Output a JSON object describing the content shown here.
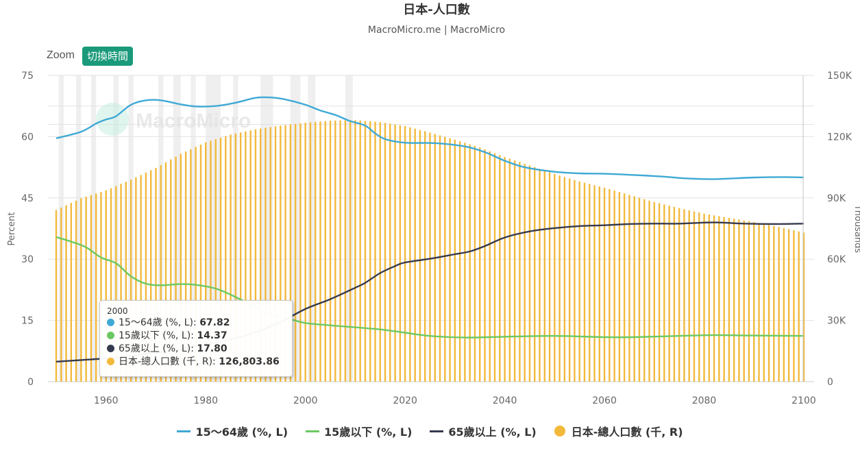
{
  "title": "日本-人口數",
  "subtitle": "MacroMicro.me | MacroMicro",
  "watermark": "MacroMicro",
  "zoom": {
    "label": "Zoom",
    "button": "切換時間"
  },
  "axes": {
    "left_title": "Percent",
    "right_title": "Thousands",
    "left_ticks": [
      "0",
      "15",
      "30",
      "45",
      "60",
      "75"
    ],
    "right_ticks": [
      "0",
      "30K",
      "60K",
      "90K",
      "120K",
      "150K"
    ],
    "x_ticks": [
      "1960",
      "1980",
      "2000",
      "2020",
      "2040",
      "2060",
      "2080",
      "2100"
    ]
  },
  "tooltip": {
    "header": "2000",
    "rows": [
      {
        "label": "15～64歲 (%, L):",
        "value": "67.82",
        "color": "#3ea9d5"
      },
      {
        "label": "15歲以下 (%, L):",
        "value": "14.37",
        "color": "#6cc861"
      },
      {
        "label": "65歲以上 (%, L):",
        "value": "17.80",
        "color": "#353a4e"
      },
      {
        "label": "日本-總人口數 (千, R):",
        "value": "126,803.86",
        "color": "#f2b93b"
      }
    ]
  },
  "legend": [
    {
      "label": "15～64歲 (%, L)",
      "color": "#3ea9d5",
      "shape": "line"
    },
    {
      "label": "15歲以下 (%, L)",
      "color": "#6cc861",
      "shape": "line"
    },
    {
      "label": "65歲以上 (%, L)",
      "color": "#353a4e",
      "shape": "line"
    },
    {
      "label": "日本-總人口數 (千, R)",
      "color": "#f2b93b",
      "shape": "dot"
    }
  ],
  "chart_data": {
    "type": "line+bar",
    "x_range": [
      1950,
      2100
    ],
    "left_axis": {
      "label": "Percent",
      "range": [
        0,
        75
      ]
    },
    "right_axis": {
      "label": "Thousands",
      "range": [
        0,
        150000
      ]
    },
    "recession_bands": [
      [
        1950.5,
        1951.5
      ],
      [
        1954,
        1955
      ],
      [
        1957,
        1958
      ],
      [
        1961.5,
        1962.5
      ],
      [
        1964.5,
        1965.5
      ],
      [
        1970.5,
        1971.5
      ],
      [
        1973.5,
        1975
      ],
      [
        1977,
        1978
      ],
      [
        1980,
        1983
      ],
      [
        1985.5,
        1986.5
      ],
      [
        1991,
        1993.5
      ],
      [
        1997,
        1999
      ],
      [
        2000.5,
        2002
      ],
      [
        2008,
        2009.5
      ]
    ],
    "series": [
      {
        "name": "15～64歲 (%, L)",
        "axis": "left",
        "kind": "line",
        "color": "#3ea9d5",
        "points": [
          [
            1950,
            59.6
          ],
          [
            1955,
            61.2
          ],
          [
            1958,
            63.2
          ],
          [
            1960,
            64.2
          ],
          [
            1962,
            65.0
          ],
          [
            1965,
            67.8
          ],
          [
            1968,
            68.9
          ],
          [
            1971,
            68.9
          ],
          [
            1975,
            67.9
          ],
          [
            1978,
            67.4
          ],
          [
            1982,
            67.5
          ],
          [
            1986,
            68.3
          ],
          [
            1990,
            69.5
          ],
          [
            1993,
            69.6
          ],
          [
            1996,
            69.1
          ],
          [
            2000,
            67.8
          ],
          [
            2003,
            66.4
          ],
          [
            2006,
            65.3
          ],
          [
            2009,
            63.8
          ],
          [
            2012,
            62.7
          ],
          [
            2014,
            60.8
          ],
          [
            2016,
            59.4
          ],
          [
            2020,
            58.5
          ],
          [
            2026,
            58.4
          ],
          [
            2032,
            57.6
          ],
          [
            2036,
            56.2
          ],
          [
            2040,
            54.1
          ],
          [
            2044,
            52.5
          ],
          [
            2050,
            51.4
          ],
          [
            2055,
            51.0
          ],
          [
            2060,
            50.9
          ],
          [
            2066,
            50.6
          ],
          [
            2072,
            50.2
          ],
          [
            2076,
            49.8
          ],
          [
            2082,
            49.6
          ],
          [
            2090,
            50.0
          ],
          [
            2096,
            50.1
          ],
          [
            2100,
            50.0
          ]
        ]
      },
      {
        "name": "15歲以下 (%, L)",
        "axis": "left",
        "kind": "line",
        "color": "#6cc861",
        "points": [
          [
            1950,
            35.4
          ],
          [
            1953,
            34.3
          ],
          [
            1956,
            32.9
          ],
          [
            1959,
            30.4
          ],
          [
            1962,
            29.0
          ],
          [
            1965,
            25.8
          ],
          [
            1968,
            24.0
          ],
          [
            1971,
            23.6
          ],
          [
            1975,
            23.9
          ],
          [
            1978,
            23.7
          ],
          [
            1982,
            22.8
          ],
          [
            1985,
            21.3
          ],
          [
            1988,
            19.5
          ],
          [
            1991,
            17.7
          ],
          [
            1994,
            16.2
          ],
          [
            1997,
            15.3
          ],
          [
            2000,
            14.37
          ],
          [
            2005,
            13.8
          ],
          [
            2010,
            13.3
          ],
          [
            2015,
            12.8
          ],
          [
            2020,
            12.0
          ],
          [
            2025,
            11.2
          ],
          [
            2032,
            10.8
          ],
          [
            2040,
            11.0
          ],
          [
            2050,
            11.2
          ],
          [
            2060,
            10.9
          ],
          [
            2066,
            10.9
          ],
          [
            2075,
            11.2
          ],
          [
            2082,
            11.4
          ],
          [
            2090,
            11.3
          ],
          [
            2100,
            11.2
          ]
        ]
      },
      {
        "name": "65歲以上 (%, L)",
        "axis": "left",
        "kind": "line",
        "color": "#353a4e",
        "points": [
          [
            1950,
            4.9
          ],
          [
            1955,
            5.3
          ],
          [
            1960,
            5.7
          ],
          [
            1965,
            6.3
          ],
          [
            1970,
            7.1
          ],
          [
            1975,
            7.9
          ],
          [
            1980,
            9.1
          ],
          [
            1985,
            10.3
          ],
          [
            1990,
            12.1
          ],
          [
            1995,
            14.6
          ],
          [
            2000,
            17.8
          ],
          [
            2005,
            20.2
          ],
          [
            2010,
            23.0
          ],
          [
            2012,
            24.2
          ],
          [
            2015,
            26.6
          ],
          [
            2018,
            28.3
          ],
          [
            2020,
            29.2
          ],
          [
            2025,
            30.1
          ],
          [
            2030,
            31.2
          ],
          [
            2033,
            31.9
          ],
          [
            2036,
            33.2
          ],
          [
            2040,
            35.3
          ],
          [
            2045,
            36.8
          ],
          [
            2050,
            37.6
          ],
          [
            2055,
            38.1
          ],
          [
            2060,
            38.3
          ],
          [
            2065,
            38.6
          ],
          [
            2070,
            38.7
          ],
          [
            2075,
            38.7
          ],
          [
            2082,
            39.0
          ],
          [
            2088,
            38.7
          ],
          [
            2095,
            38.6
          ],
          [
            2100,
            38.7
          ]
        ]
      },
      {
        "name": "日本-總人口數 (千, R)",
        "axis": "right",
        "kind": "bar",
        "color": "#f2b93b",
        "points": [
          [
            1950,
            84100
          ],
          [
            1955,
            89800
          ],
          [
            1960,
            93700
          ],
          [
            1965,
            98900
          ],
          [
            1970,
            104700
          ],
          [
            1975,
            111600
          ],
          [
            1980,
            117200
          ],
          [
            1985,
            121000
          ],
          [
            1990,
            123600
          ],
          [
            1995,
            125400
          ],
          [
            2000,
            126803.86
          ],
          [
            2005,
            127800
          ],
          [
            2010,
            128100
          ],
          [
            2015,
            127100
          ],
          [
            2020,
            125200
          ],
          [
            2025,
            122000
          ],
          [
            2030,
            118500
          ],
          [
            2035,
            114700
          ],
          [
            2040,
            110000
          ],
          [
            2045,
            105900
          ],
          [
            2050,
            101700
          ],
          [
            2055,
            98000
          ],
          [
            2060,
            95000
          ],
          [
            2065,
            91500
          ],
          [
            2070,
            88000
          ],
          [
            2075,
            85000
          ],
          [
            2080,
            82300
          ],
          [
            2085,
            80200
          ],
          [
            2090,
            78200
          ],
          [
            2095,
            75800
          ],
          [
            2100,
            73000
          ]
        ]
      }
    ]
  }
}
